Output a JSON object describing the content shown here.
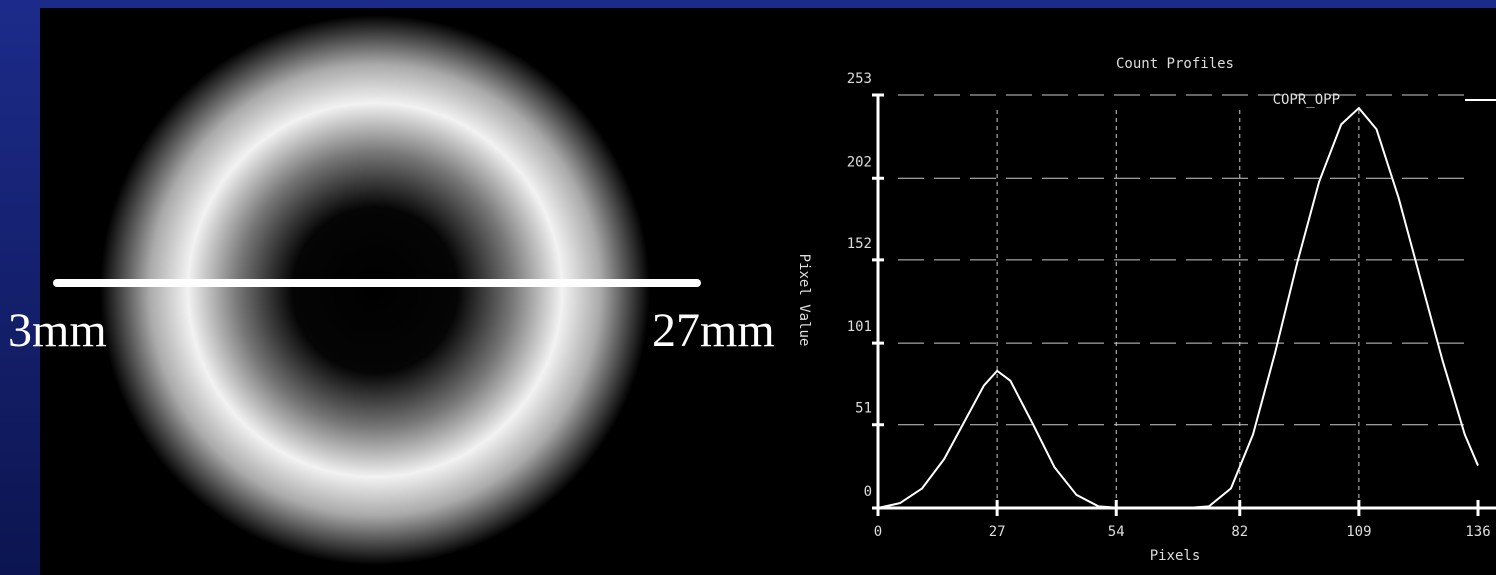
{
  "image": {
    "left_label": "3mm",
    "right_label": "27mm"
  },
  "chart_data": {
    "type": "line",
    "title": "Count Profiles",
    "x_label": "Pixels",
    "y_label": "Pixel Value",
    "x": [
      0,
      5,
      10,
      15,
      20,
      24,
      27,
      30,
      35,
      40,
      45,
      50,
      55,
      60,
      65,
      70,
      75,
      80,
      85,
      90,
      95,
      100,
      105,
      109,
      113,
      118,
      123,
      128,
      133,
      136
    ],
    "series": [
      {
        "name": "COPR_OPP",
        "color": "#ffffff",
        "values": [
          0,
          3,
          12,
          30,
          55,
          75,
          84,
          78,
          52,
          25,
          8,
          1,
          0,
          0,
          0,
          0,
          1,
          12,
          45,
          95,
          150,
          200,
          235,
          245,
          232,
          190,
          140,
          90,
          45,
          26
        ]
      }
    ],
    "xlim": [
      0,
      136
    ],
    "xticks": [
      0,
      27,
      54,
      82,
      109,
      136
    ],
    "ylim": [
      0,
      253
    ],
    "yticks": [
      0,
      51,
      101,
      152,
      202,
      253
    ],
    "grid": true
  }
}
